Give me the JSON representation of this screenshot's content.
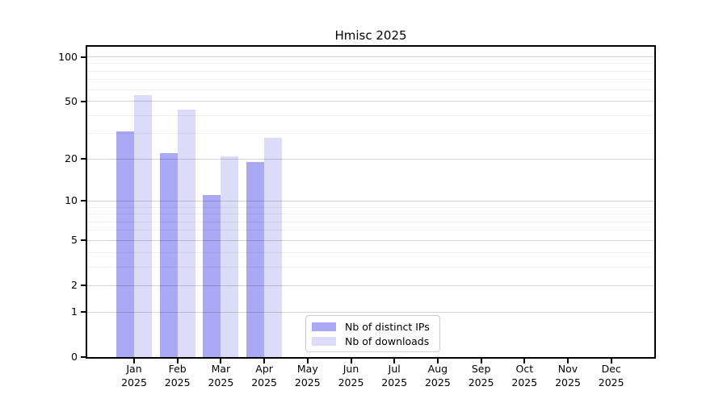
{
  "chart_data": {
    "type": "bar",
    "title": "Hmisc 2025",
    "scale": "log1p",
    "categories": [
      "Jan",
      "Feb",
      "Mar",
      "Apr",
      "May",
      "Jun",
      "Jul",
      "Aug",
      "Sep",
      "Oct",
      "Nov",
      "Dec"
    ],
    "year_label": "2025",
    "series": [
      {
        "name": "Nb of distinct IPs",
        "color": "#a9a9f6",
        "values": [
          31,
          22,
          11,
          19,
          0,
          0,
          0,
          0,
          0,
          0,
          0,
          0
        ]
      },
      {
        "name": "Nb of downloads",
        "color": "#dcdcf8",
        "values": [
          55,
          44,
          21,
          28,
          0,
          0,
          0,
          0,
          0,
          0,
          0,
          0
        ]
      }
    ],
    "yticks": [
      0,
      1,
      2,
      5,
      10,
      20,
      50,
      100
    ],
    "minor_yticks": [
      3,
      4,
      6,
      7,
      8,
      9,
      30,
      40,
      60,
      70,
      80,
      90
    ],
    "ylim": [
      0,
      117
    ],
    "grid": "both",
    "legend_position": "lower-center",
    "colors": {
      "axis": "#000000",
      "grid_major": "#d6d6d6",
      "grid_minor": "#f0f0f0",
      "legend_border": "#cccccc",
      "background": "#ffffff"
    }
  }
}
